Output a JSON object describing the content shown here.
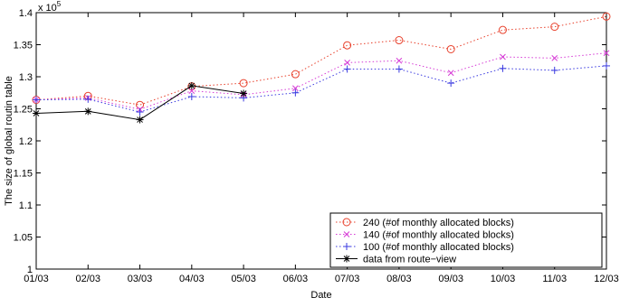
{
  "chart_data": {
    "type": "line",
    "title": "",
    "xlabel": "Date",
    "ylabel": "The size of global routin table",
    "y_multiplier_label": "x 10",
    "y_multiplier_exponent": "5",
    "categories": [
      "01/03",
      "02/03",
      "03/03",
      "04/03",
      "05/03",
      "06/03",
      "07/03",
      "08/03",
      "09/03",
      "10/03",
      "11/03",
      "12/03"
    ],
    "ylim": [
      1.0,
      1.4
    ],
    "yticks": [
      "1",
      "1.05",
      "1.1",
      "1.15",
      "1.2",
      "1.25",
      "1.3",
      "1.35",
      "1.4"
    ],
    "grid": false,
    "legend_position": "bottom-right",
    "series": [
      {
        "name": "240 (#of monthly allocated blocks)",
        "marker": "circle",
        "line_style": "dotted",
        "color": "#e8412c",
        "values": [
          1.264,
          1.27,
          1.256,
          1.285,
          1.29,
          1.304,
          1.349,
          1.357,
          1.343,
          1.373,
          1.378,
          1.394
        ]
      },
      {
        "name": "140 (#of monthly allocated blocks)",
        "marker": "x",
        "line_style": "dotted",
        "color": "#d63bd6",
        "values": [
          1.264,
          1.267,
          1.249,
          1.278,
          1.272,
          1.282,
          1.322,
          1.325,
          1.306,
          1.331,
          1.329,
          1.337
        ]
      },
      {
        "name": "100 (#of monthly allocated blocks)",
        "marker": "plus",
        "line_style": "dotted",
        "color": "#3a3ae0",
        "values": [
          1.264,
          1.265,
          1.245,
          1.269,
          1.267,
          1.275,
          1.312,
          1.312,
          1.29,
          1.313,
          1.31,
          1.317
        ]
      },
      {
        "name": "data from route−view",
        "marker": "star",
        "line_style": "solid",
        "color": "#000000",
        "values": [
          1.243,
          1.246,
          1.233,
          1.286,
          1.274,
          null,
          null,
          null,
          null,
          null,
          null,
          null
        ]
      }
    ]
  }
}
